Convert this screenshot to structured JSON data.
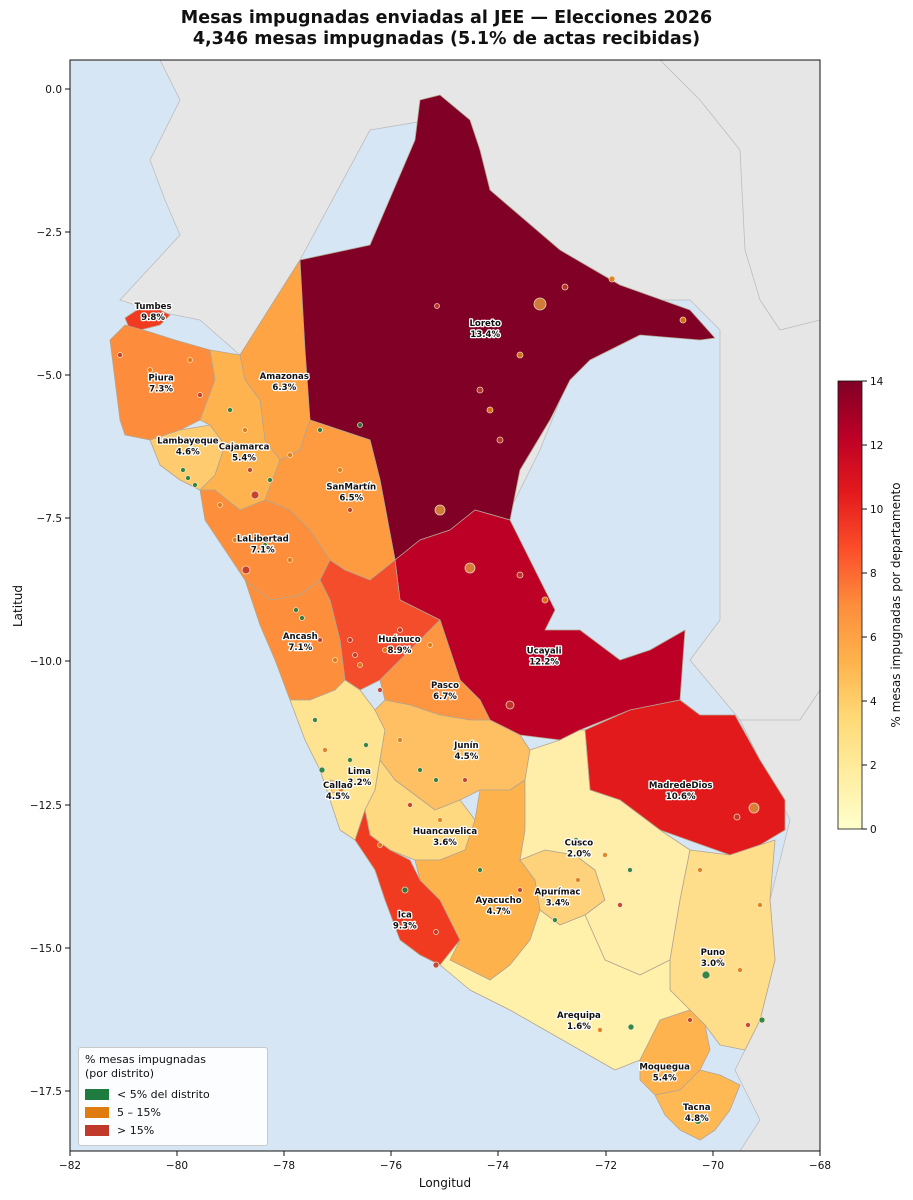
{
  "title_line1": "Mesas impugnadas enviadas al JEE — Elecciones 2026",
  "title_line2": "4,346 mesas impugnadas (5.1% de actas recibidas)",
  "axes": {
    "xlabel": "Longitud",
    "ylabel": "Latitud",
    "xlim": [
      -82,
      -68
    ],
    "ylim": [
      -18.5,
      0.5
    ],
    "xticks": [
      "−82",
      "−80",
      "−78",
      "−76",
      "−74",
      "−72",
      "−70",
      "−68"
    ],
    "yticks": [
      "0.0",
      "−2.5",
      "−5.0",
      "−7.5",
      "−10.0",
      "−12.5",
      "−15.0",
      "−17.5"
    ]
  },
  "colorbar": {
    "label": "% mesas impugnadas por departamento",
    "ticks": [
      "0",
      "2",
      "4",
      "6",
      "8",
      "10",
      "12",
      "14"
    ],
    "range": [
      0,
      14
    ]
  },
  "legend": {
    "title": "% mesas impugnadas\n(por distrito)",
    "items": [
      {
        "label": "< 5% del distrito",
        "color": "#1e7d3e"
      },
      {
        "label": "5 – 15%",
        "color": "#e07b10"
      },
      {
        "label": "> 15%",
        "color": "#c0392b"
      }
    ]
  },
  "chart_data": {
    "type": "choropleth",
    "departments": [
      {
        "name": "Tumbes",
        "pct": 9.8,
        "pct_label": "9.8%",
        "lon": -80.45,
        "lat": -3.85
      },
      {
        "name": "Piura",
        "pct": 7.3,
        "pct_label": "7.3%",
        "lon": -80.3,
        "lat": -5.1
      },
      {
        "name": "Amazonas",
        "pct": 6.3,
        "pct_label": "6.3%",
        "lon": -78.0,
        "lat": -5.07
      },
      {
        "name": "Loreto",
        "pct": 13.4,
        "pct_label": "13.4%",
        "lon": -74.25,
        "lat": -4.15
      },
      {
        "name": "Lambayeque",
        "pct": 4.6,
        "pct_label": "4.6%",
        "lon": -79.8,
        "lat": -6.2
      },
      {
        "name": "Cajamarca",
        "pct": 5.4,
        "pct_label": "5.4%",
        "lon": -78.75,
        "lat": -6.3
      },
      {
        "name": "SanMartín",
        "pct": 6.5,
        "pct_label": "6.5%",
        "lon": -76.75,
        "lat": -7.0
      },
      {
        "name": "LaLibertad",
        "pct": 7.1,
        "pct_label": "7.1%",
        "lon": -78.4,
        "lat": -7.9
      },
      {
        "name": "Ancash",
        "pct": 7.1,
        "pct_label": "7.1%",
        "lon": -77.7,
        "lat": -9.6
      },
      {
        "name": "Huánuco",
        "pct": 8.9,
        "pct_label": "8.9%",
        "lon": -75.85,
        "lat": -9.65
      },
      {
        "name": "Ucayali",
        "pct": 12.2,
        "pct_label": "12.2%",
        "lon": -73.15,
        "lat": -9.85
      },
      {
        "name": "Pasco",
        "pct": 6.7,
        "pct_label": "6.7%",
        "lon": -75.0,
        "lat": -10.45
      },
      {
        "name": "Junín",
        "pct": 4.5,
        "pct_label": "4.5%",
        "lon": -74.6,
        "lat": -11.5
      },
      {
        "name": "Lima",
        "pct": 3.2,
        "pct_label": "3.2%",
        "lon": -76.6,
        "lat": -11.95
      },
      {
        "name": "Callao",
        "pct": 4.5,
        "pct_label": "4.5%",
        "lon": -77.0,
        "lat": -12.2
      },
      {
        "name": "MadredeDios",
        "pct": 10.6,
        "pct_label": "10.6%",
        "lon": -70.6,
        "lat": -12.2
      },
      {
        "name": "Huancavelica",
        "pct": 3.6,
        "pct_label": "3.6%",
        "lon": -75.0,
        "lat": -13.0
      },
      {
        "name": "Cusco",
        "pct": 2.0,
        "pct_label": "2.0%",
        "lon": -72.5,
        "lat": -13.2
      },
      {
        "name": "Ayacucho",
        "pct": 4.7,
        "pct_label": "4.7%",
        "lon": -74.0,
        "lat": -14.2
      },
      {
        "name": "Apurímac",
        "pct": 3.4,
        "pct_label": "3.4%",
        "lon": -72.9,
        "lat": -14.05
      },
      {
        "name": "Ica",
        "pct": 9.3,
        "pct_label": "9.3%",
        "lon": -75.75,
        "lat": -14.45
      },
      {
        "name": "Puno",
        "pct": 3.0,
        "pct_label": "3.0%",
        "lon": -70.0,
        "lat": -15.1
      },
      {
        "name": "Arequipa",
        "pct": 1.6,
        "pct_label": "1.6%",
        "lon": -72.5,
        "lat": -16.2
      },
      {
        "name": "Moquegua",
        "pct": 5.4,
        "pct_label": "5.4%",
        "lon": -70.9,
        "lat": -17.1
      },
      {
        "name": "Tacna",
        "pct": 4.8,
        "pct_label": "4.8%",
        "lon": -70.3,
        "lat": -17.8
      }
    ]
  }
}
